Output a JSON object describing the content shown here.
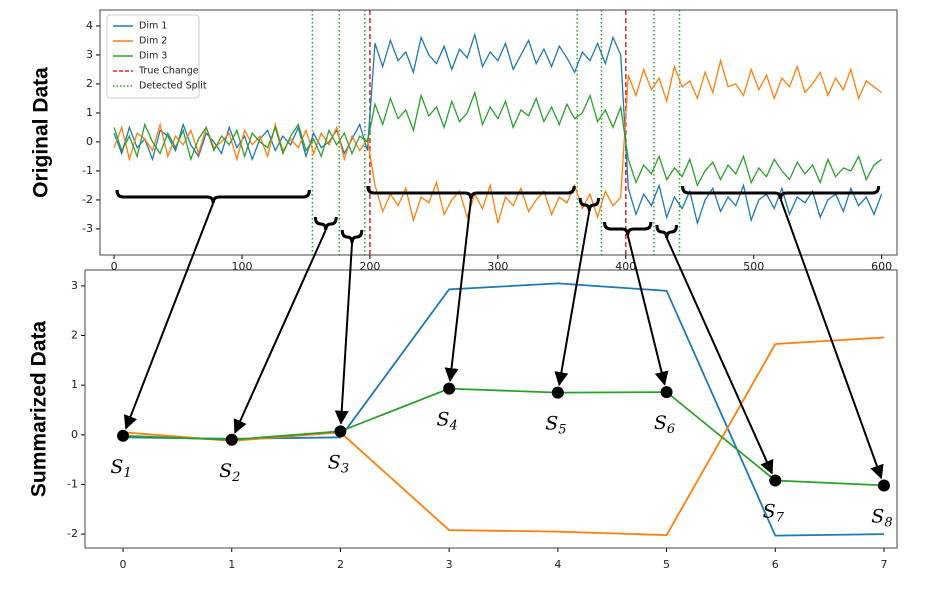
{
  "chart_data": [
    {
      "type": "line",
      "ylabel": "Original Data",
      "x": [
        0,
        6,
        12,
        18,
        24,
        30,
        36,
        42,
        48,
        54,
        60,
        66,
        72,
        78,
        84,
        90,
        96,
        102,
        108,
        114,
        120,
        126,
        132,
        138,
        144,
        150,
        156,
        162,
        168,
        174,
        180,
        186,
        192,
        198,
        204,
        210,
        216,
        222,
        228,
        234,
        240,
        246,
        252,
        258,
        264,
        270,
        276,
        282,
        288,
        294,
        300,
        306,
        312,
        318,
        324,
        330,
        336,
        342,
        348,
        354,
        360,
        366,
        372,
        378,
        384,
        390,
        396,
        402,
        408,
        414,
        420,
        426,
        432,
        438,
        444,
        450,
        456,
        462,
        468,
        474,
        480,
        486,
        492,
        498,
        504,
        510,
        516,
        522,
        528,
        534,
        540,
        546,
        552,
        558,
        564,
        570,
        576,
        582,
        588,
        594,
        600
      ],
      "xlim": [
        -11,
        612
      ],
      "xticks": [
        0,
        100,
        200,
        300,
        400,
        500,
        600
      ],
      "ylim": [
        -3.9,
        4.55
      ],
      "yticks": [
        -3,
        -2,
        -1,
        0,
        1,
        2,
        3,
        4
      ],
      "legend": "upper left",
      "series": [
        {
          "name": "Dim 1",
          "color": "#1f77b4",
          "values": [
            0.3,
            -0.4,
            0.5,
            -0.2,
            0.1,
            -0.6,
            0.4,
            0.2,
            -0.3,
            0.6,
            -0.1,
            -0.5,
            0.3,
            0.0,
            -0.4,
            0.5,
            -0.2,
            0.2,
            -0.6,
            0.1,
            0.4,
            -0.3,
            0.2,
            -0.1,
            0.5,
            -0.5,
            0.3,
            -0.2,
            0.0,
            0.4,
            -0.4,
            0.1,
            0.6,
            -0.3,
            3.4,
            2.6,
            3.5,
            2.8,
            3.1,
            2.4,
            3.6,
            3.0,
            2.7,
            3.3,
            2.5,
            3.2,
            2.9,
            3.7,
            2.6,
            3.1,
            2.8,
            3.4,
            2.5,
            3.0,
            3.5,
            2.7,
            3.2,
            2.6,
            3.3,
            2.9,
            2.4,
            3.1,
            2.8,
            3.4,
            2.7,
            3.6,
            3.0,
            -1.6,
            -2.5,
            -1.8,
            -2.2,
            -1.5,
            -2.6,
            -1.9,
            -2.3,
            -1.7,
            -2.8,
            -2.0,
            -1.6,
            -2.4,
            -1.9,
            -2.2,
            -1.5,
            -2.7,
            -2.0,
            -1.8,
            -2.3,
            -1.6,
            -2.5,
            -1.9,
            -2.1,
            -1.7,
            -2.6,
            -2.0,
            -1.8,
            -2.4,
            -1.6,
            -2.2,
            -1.9,
            -2.5,
            -1.8
          ]
        },
        {
          "name": "Dim 2",
          "color": "#ff7f0e",
          "values": [
            -0.2,
            0.5,
            -0.6,
            0.3,
            0.1,
            -0.3,
            0.6,
            -0.5,
            0.2,
            -0.1,
            0.4,
            -0.4,
            0.5,
            -0.2,
            0.0,
            0.3,
            -0.6,
            0.4,
            -0.1,
            0.2,
            -0.5,
            0.6,
            -0.3,
            0.1,
            -0.2,
            0.4,
            -0.4,
            0.3,
            -0.1,
            0.5,
            -0.6,
            0.2,
            -0.3,
            0.1,
            -1.5,
            -2.4,
            -1.8,
            -2.2,
            -1.6,
            -2.7,
            -1.9,
            -2.1,
            -1.4,
            -2.5,
            -2.0,
            -1.7,
            -2.6,
            -1.8,
            -2.3,
            -1.5,
            -2.8,
            -1.9,
            -2.2,
            -1.6,
            -2.4,
            -2.0,
            -1.7,
            -2.5,
            -1.9,
            -2.1,
            -1.5,
            -2.3,
            -1.8,
            -2.6,
            -1.7,
            -2.2,
            -1.9,
            2.3,
            1.6,
            2.5,
            1.8,
            2.2,
            1.4,
            2.6,
            1.9,
            2.1,
            1.5,
            2.4,
            1.7,
            2.8,
            1.9,
            2.0,
            1.6,
            2.5,
            1.8,
            2.3,
            1.5,
            2.2,
            1.9,
            2.6,
            1.7,
            2.0,
            2.4,
            1.6,
            2.2,
            1.8,
            2.5,
            1.5,
            2.1,
            1.9,
            1.7
          ]
        },
        {
          "name": "Dim 3",
          "color": "#2ca02c",
          "values": [
            0.5,
            -0.3,
            0.2,
            -0.5,
            0.6,
            0.0,
            -0.4,
            0.3,
            -0.2,
            0.4,
            -0.6,
            0.1,
            0.5,
            -0.3,
            0.2,
            -0.1,
            0.4,
            -0.5,
            0.3,
            0.0,
            -0.2,
            0.5,
            -0.4,
            0.2,
            0.6,
            -0.3,
            0.1,
            -0.5,
            0.4,
            -0.1,
            0.3,
            -0.4,
            0.2,
            0.0,
            1.3,
            0.6,
            1.5,
            0.8,
            1.1,
            0.4,
            1.6,
            0.9,
            1.2,
            0.5,
            1.4,
            0.7,
            1.0,
            1.7,
            0.6,
            1.2,
            0.8,
            1.4,
            0.5,
            1.1,
            0.9,
            1.5,
            0.7,
            1.2,
            0.6,
            1.3,
            0.8,
            1.0,
            1.6,
            0.7,
            1.1,
            0.5,
            1.2,
            -0.6,
            -1.4,
            -0.8,
            -1.1,
            -0.5,
            -1.3,
            -0.9,
            -1.2,
            -0.6,
            -1.5,
            -1.0,
            -0.7,
            -1.3,
            -0.8,
            -1.1,
            -0.5,
            -1.4,
            -0.9,
            -1.2,
            -0.6,
            -1.0,
            -1.3,
            -0.7,
            -1.1,
            -0.8,
            -1.4,
            -0.6,
            -1.2,
            -0.9,
            -1.0,
            -0.5,
            -1.3,
            -0.8,
            -0.6
          ]
        }
      ],
      "vlines": [
        {
          "name": "True Change",
          "color": "#d62728",
          "style": "dashed",
          "x": [
            200,
            400
          ]
        },
        {
          "name": "Detected Split",
          "color": "#2ca02c",
          "style": "dotted",
          "x": [
            155,
            176,
            196,
            362,
            381,
            422,
            442
          ]
        }
      ]
    },
    {
      "type": "line",
      "ylabel": "Summarized Data",
      "x": [
        0,
        1,
        2,
        3,
        4,
        5,
        6,
        7
      ],
      "xlim": [
        -0.35,
        7.12
      ],
      "xticks": [
        0,
        1,
        2,
        3,
        4,
        5,
        6,
        7
      ],
      "ylim": [
        -2.28,
        3.32
      ],
      "yticks": [
        -2,
        -1,
        0,
        1,
        2,
        3
      ],
      "series": [
        {
          "name": "Dim 1",
          "color": "#1f77b4",
          "values": [
            -0.05,
            -0.08,
            -0.05,
            2.93,
            3.05,
            2.9,
            -2.03,
            -2.0
          ]
        },
        {
          "name": "Dim 2",
          "color": "#ff7f0e",
          "values": [
            0.05,
            -0.12,
            0.05,
            -1.92,
            -1.95,
            -2.02,
            1.83,
            1.96
          ]
        },
        {
          "name": "Dim 3",
          "color": "#2ca02c",
          "values": [
            -0.02,
            -0.1,
            0.07,
            0.93,
            0.85,
            0.86,
            -0.92,
            -1.02
          ]
        }
      ],
      "point_color": "#000000",
      "point_labels": [
        {
          "text": "S",
          "sub": "1"
        },
        {
          "text": "S",
          "sub": "2"
        },
        {
          "text": "S",
          "sub": "3"
        },
        {
          "text": "S",
          "sub": "4"
        },
        {
          "text": "S",
          "sub": "5"
        },
        {
          "text": "S",
          "sub": "6"
        },
        {
          "text": "S",
          "sub": "7"
        },
        {
          "text": "S",
          "sub": "8"
        }
      ]
    }
  ]
}
